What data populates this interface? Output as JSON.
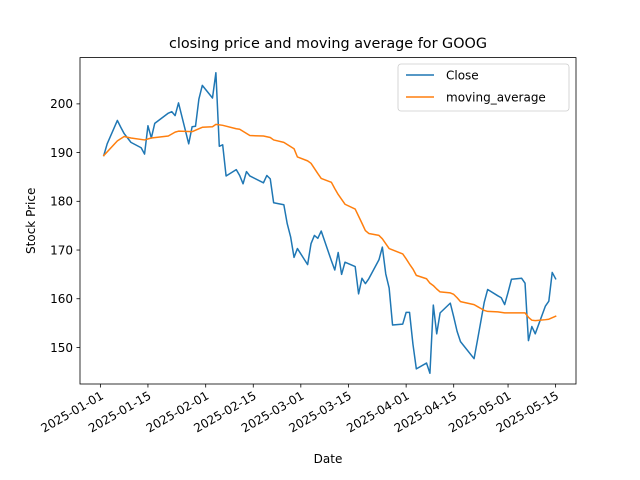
{
  "chart_data": {
    "type": "line",
    "title": "closing price and moving average for GOOG",
    "xlabel": "Date",
    "ylabel": "Stock Price",
    "xlim": [
      "2024-12-26",
      "2025-05-21"
    ],
    "ylim": [
      142.5,
      209.5
    ],
    "grid": false,
    "legend_position": "top-right",
    "x_ticks": [
      "2025-01-01",
      "2025-01-15",
      "2025-02-01",
      "2025-02-15",
      "2025-03-01",
      "2025-03-15",
      "2025-04-01",
      "2025-04-15",
      "2025-05-01",
      "2025-05-15"
    ],
    "y_ticks": [
      150,
      160,
      170,
      180,
      190,
      200
    ],
    "series": [
      {
        "name": "Close",
        "color": "#1f77b4",
        "points": [
          [
            "2025-01-02",
            189.4
          ],
          [
            "2025-01-03",
            191.8
          ],
          [
            "2025-01-06",
            196.6
          ],
          [
            "2025-01-07",
            195.2
          ],
          [
            "2025-01-08",
            193.9
          ],
          [
            "2025-01-10",
            192.1
          ],
          [
            "2025-01-13",
            191.0
          ],
          [
            "2025-01-14",
            189.7
          ],
          [
            "2025-01-15",
            195.5
          ],
          [
            "2025-01-16",
            193.0
          ],
          [
            "2025-01-17",
            196.0
          ],
          [
            "2025-01-21",
            198.1
          ],
          [
            "2025-01-22",
            198.4
          ],
          [
            "2025-01-23",
            197.6
          ],
          [
            "2025-01-24",
            200.2
          ],
          [
            "2025-01-27",
            191.8
          ],
          [
            "2025-01-28",
            195.3
          ],
          [
            "2025-01-29",
            195.4
          ],
          [
            "2025-01-30",
            201.0
          ],
          [
            "2025-01-31",
            203.8
          ],
          [
            "2025-02-03",
            201.2
          ],
          [
            "2025-02-04",
            206.4
          ],
          [
            "2025-02-05",
            191.3
          ],
          [
            "2025-02-06",
            191.6
          ],
          [
            "2025-02-07",
            185.2
          ],
          [
            "2025-02-10",
            186.5
          ],
          [
            "2025-02-11",
            185.3
          ],
          [
            "2025-02-12",
            183.6
          ],
          [
            "2025-02-13",
            186.1
          ],
          [
            "2025-02-14",
            185.2
          ],
          [
            "2025-02-18",
            183.8
          ],
          [
            "2025-02-19",
            185.3
          ],
          [
            "2025-02-20",
            184.6
          ],
          [
            "2025-02-21",
            179.7
          ],
          [
            "2025-02-24",
            179.3
          ],
          [
            "2025-02-25",
            175.4
          ],
          [
            "2025-02-26",
            172.7
          ],
          [
            "2025-02-27",
            168.5
          ],
          [
            "2025-02-28",
            170.3
          ],
          [
            "2025-03-03",
            167.0
          ],
          [
            "2025-03-04",
            171.3
          ],
          [
            "2025-03-05",
            173.0
          ],
          [
            "2025-03-06",
            172.4
          ],
          [
            "2025-03-07",
            173.9
          ],
          [
            "2025-03-10",
            167.8
          ],
          [
            "2025-03-11",
            165.9
          ],
          [
            "2025-03-12",
            169.5
          ],
          [
            "2025-03-13",
            165.0
          ],
          [
            "2025-03-14",
            167.5
          ],
          [
            "2025-03-17",
            166.6
          ],
          [
            "2025-03-18",
            161.0
          ],
          [
            "2025-03-19",
            164.2
          ],
          [
            "2025-03-20",
            163.1
          ],
          [
            "2025-03-21",
            164.1
          ],
          [
            "2025-03-24",
            168.0
          ],
          [
            "2025-03-25",
            170.6
          ],
          [
            "2025-03-26",
            165.1
          ],
          [
            "2025-03-27",
            162.2
          ],
          [
            "2025-03-28",
            154.6
          ],
          [
            "2025-03-31",
            154.8
          ],
          [
            "2025-04-01",
            157.2
          ],
          [
            "2025-04-02",
            157.2
          ],
          [
            "2025-04-03",
            150.7
          ],
          [
            "2025-04-04",
            145.6
          ],
          [
            "2025-04-07",
            146.8
          ],
          [
            "2025-04-08",
            144.7
          ],
          [
            "2025-04-09",
            158.7
          ],
          [
            "2025-04-10",
            152.8
          ],
          [
            "2025-04-11",
            157.1
          ],
          [
            "2025-04-14",
            159.1
          ],
          [
            "2025-04-15",
            156.3
          ],
          [
            "2025-04-16",
            153.3
          ],
          [
            "2025-04-17",
            151.2
          ],
          [
            "2025-04-21",
            147.7
          ],
          [
            "2025-04-22",
            151.5
          ],
          [
            "2025-04-23",
            155.4
          ],
          [
            "2025-04-24",
            159.3
          ],
          [
            "2025-04-25",
            161.9
          ],
          [
            "2025-04-28",
            160.6
          ],
          [
            "2025-04-29",
            160.2
          ],
          [
            "2025-04-30",
            158.8
          ],
          [
            "2025-05-01",
            161.3
          ],
          [
            "2025-05-02",
            164.0
          ],
          [
            "2025-05-05",
            164.2
          ],
          [
            "2025-05-06",
            163.2
          ],
          [
            "2025-05-07",
            151.4
          ],
          [
            "2025-05-08",
            154.3
          ],
          [
            "2025-05-09",
            152.8
          ],
          [
            "2025-05-12",
            158.5
          ],
          [
            "2025-05-13",
            159.5
          ],
          [
            "2025-05-14",
            165.4
          ],
          [
            "2025-05-15",
            164.1
          ]
        ]
      },
      {
        "name": "moving_average",
        "color": "#ff7f0e",
        "points": [
          [
            "2025-01-02",
            189.4
          ],
          [
            "2025-01-06",
            192.4
          ],
          [
            "2025-01-08",
            193.3
          ],
          [
            "2025-01-10",
            193.0
          ],
          [
            "2025-01-14",
            192.6
          ],
          [
            "2025-01-16",
            193.0
          ],
          [
            "2025-01-21",
            193.4
          ],
          [
            "2025-01-23",
            194.2
          ],
          [
            "2025-01-24",
            194.4
          ],
          [
            "2025-01-28",
            194.3
          ],
          [
            "2025-01-31",
            195.2
          ],
          [
            "2025-02-03",
            195.3
          ],
          [
            "2025-02-04",
            195.8
          ],
          [
            "2025-02-06",
            195.6
          ],
          [
            "2025-02-10",
            194.9
          ],
          [
            "2025-02-11",
            194.8
          ],
          [
            "2025-02-14",
            193.5
          ],
          [
            "2025-02-18",
            193.4
          ],
          [
            "2025-02-20",
            193.1
          ],
          [
            "2025-02-21",
            192.6
          ],
          [
            "2025-02-24",
            192.1
          ],
          [
            "2025-02-27",
            190.8
          ],
          [
            "2025-02-28",
            189.1
          ],
          [
            "2025-03-03",
            188.3
          ],
          [
            "2025-03-04",
            187.8
          ],
          [
            "2025-03-06",
            185.7
          ],
          [
            "2025-03-07",
            184.7
          ],
          [
            "2025-03-10",
            183.9
          ],
          [
            "2025-03-11",
            182.6
          ],
          [
            "2025-03-12",
            181.4
          ],
          [
            "2025-03-14",
            179.4
          ],
          [
            "2025-03-17",
            178.4
          ],
          [
            "2025-03-19",
            175.5
          ],
          [
            "2025-03-20",
            174.0
          ],
          [
            "2025-03-21",
            173.4
          ],
          [
            "2025-03-24",
            173.0
          ],
          [
            "2025-03-25",
            172.3
          ],
          [
            "2025-03-26",
            171.3
          ],
          [
            "2025-03-27",
            170.3
          ],
          [
            "2025-03-31",
            169.2
          ],
          [
            "2025-04-01",
            168.2
          ],
          [
            "2025-04-02",
            167.1
          ],
          [
            "2025-04-03",
            166.1
          ],
          [
            "2025-04-04",
            164.8
          ],
          [
            "2025-04-07",
            164.1
          ],
          [
            "2025-04-08",
            163.2
          ],
          [
            "2025-04-09",
            162.7
          ],
          [
            "2025-04-10",
            162.0
          ],
          [
            "2025-04-11",
            161.4
          ],
          [
            "2025-04-14",
            161.2
          ],
          [
            "2025-04-15",
            160.9
          ],
          [
            "2025-04-16",
            160.2
          ],
          [
            "2025-04-17",
            159.4
          ],
          [
            "2025-04-21",
            158.8
          ],
          [
            "2025-04-22",
            158.4
          ],
          [
            "2025-04-23",
            158.0
          ],
          [
            "2025-04-24",
            157.6
          ],
          [
            "2025-04-25",
            157.4
          ],
          [
            "2025-04-28",
            157.3
          ],
          [
            "2025-04-29",
            157.2
          ],
          [
            "2025-04-30",
            157.1
          ],
          [
            "2025-05-01",
            157.1
          ],
          [
            "2025-05-02",
            157.1
          ],
          [
            "2025-05-06",
            157.1
          ],
          [
            "2025-05-07",
            156.2
          ],
          [
            "2025-05-08",
            155.6
          ],
          [
            "2025-05-09",
            155.5
          ],
          [
            "2025-05-12",
            155.7
          ],
          [
            "2025-05-13",
            155.8
          ],
          [
            "2025-05-15",
            156.4
          ]
        ]
      }
    ]
  }
}
